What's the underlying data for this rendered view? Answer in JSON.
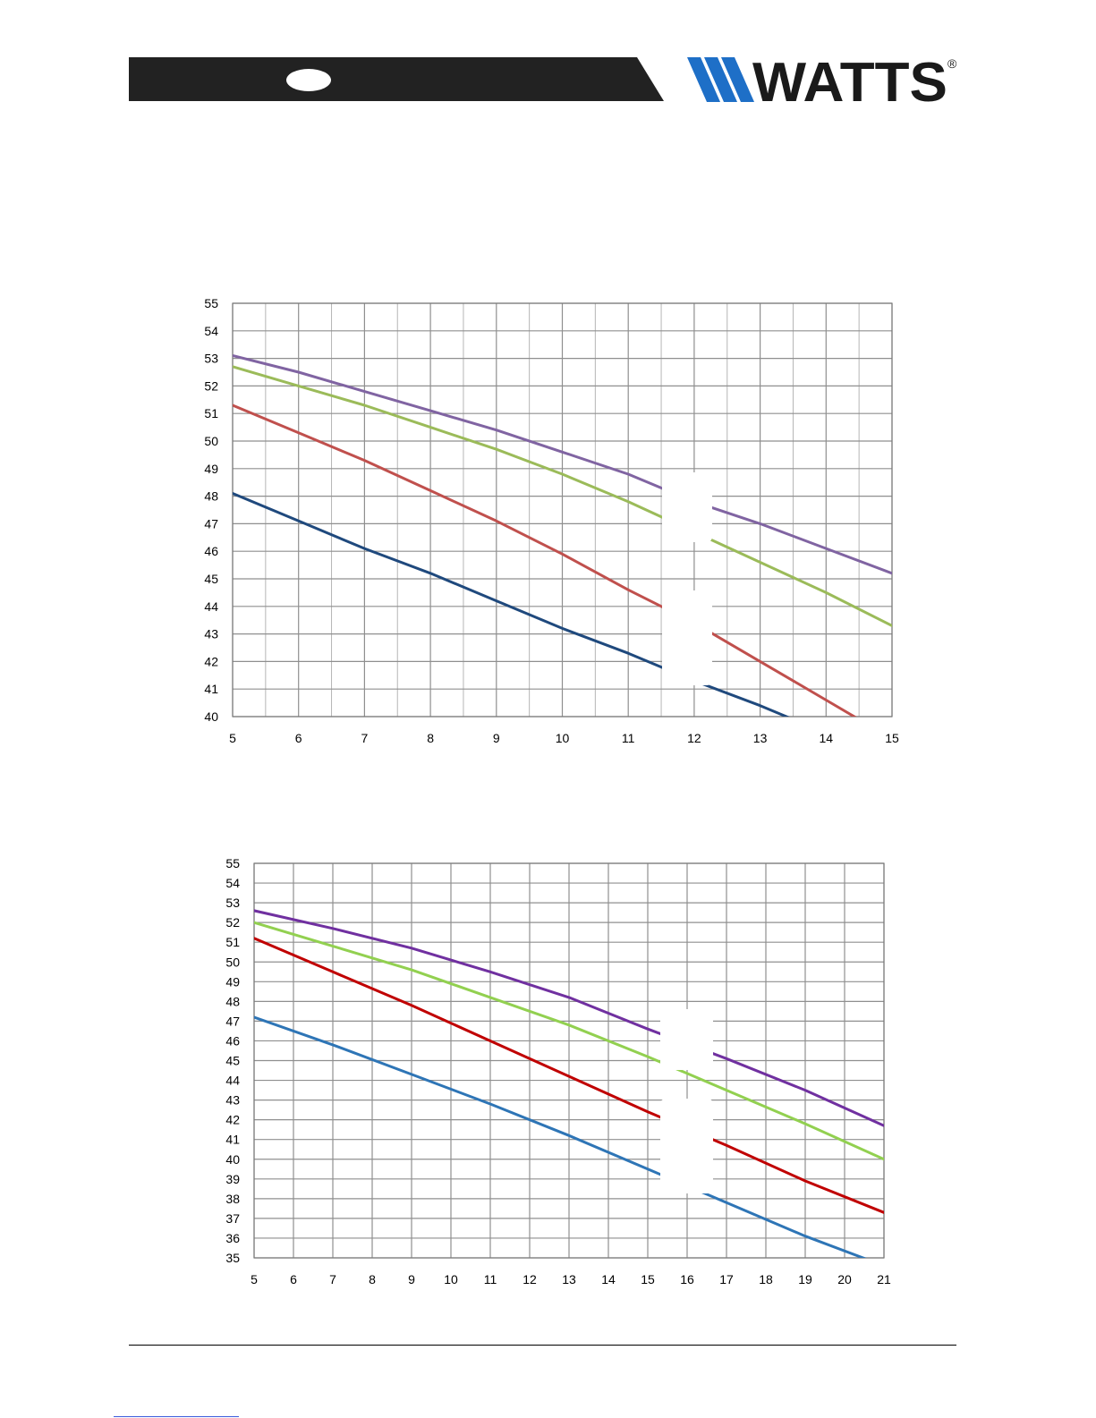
{
  "header": {
    "brand": "WATTS",
    "trademark": "®",
    "band_color": "#222222",
    "logo_blue": "#1e6fc7",
    "logo_text_color": "#1a1a1a"
  },
  "chart_data": [
    {
      "type": "line",
      "title": "",
      "xlabel": "",
      "ylabel": "",
      "xlim": [
        5,
        15
      ],
      "ylim": [
        40,
        55
      ],
      "x_ticks": [
        "5",
        "6",
        "7",
        "8",
        "9",
        "10",
        "11",
        "12",
        "13",
        "14",
        "15"
      ],
      "y_ticks": [
        "55",
        "54",
        "53",
        "52",
        "51",
        "50",
        "49",
        "48",
        "47",
        "46",
        "45",
        "44",
        "43",
        "42",
        "41",
        "40"
      ],
      "grid": true,
      "legend": "none",
      "series": [
        {
          "color": "#8064a2",
          "x": [
            5,
            6,
            7,
            8,
            9,
            10,
            11,
            12,
            13,
            14,
            15
          ],
          "y": [
            53.1,
            52.5,
            51.8,
            51.1,
            50.4,
            49.6,
            48.8,
            47.8,
            47.0,
            46.1,
            45.2
          ]
        },
        {
          "color": "#9bbb59",
          "x": [
            5,
            6,
            7,
            8,
            9,
            10,
            11,
            12,
            13,
            14,
            15
          ],
          "y": [
            52.7,
            52.0,
            51.3,
            50.5,
            49.7,
            48.8,
            47.8,
            46.7,
            45.6,
            44.5,
            43.3
          ]
        },
        {
          "color": "#c0504d",
          "x": [
            5,
            6,
            7,
            8,
            9,
            10,
            11,
            12,
            13,
            14,
            14.5
          ],
          "y": [
            51.3,
            50.3,
            49.3,
            48.2,
            47.1,
            45.9,
            44.6,
            43.4,
            42.0,
            40.6,
            39.9
          ]
        },
        {
          "color": "#1f497d",
          "x": [
            5,
            6,
            7,
            8,
            9,
            10,
            11,
            12,
            13,
            13.5
          ],
          "y": [
            48.1,
            47.1,
            46.1,
            45.2,
            44.2,
            43.2,
            42.3,
            41.3,
            40.4,
            39.9
          ]
        }
      ]
    },
    {
      "type": "line",
      "title": "",
      "xlabel": "",
      "ylabel": "",
      "xlim": [
        5,
        21
      ],
      "ylim": [
        35,
        55
      ],
      "x_ticks": [
        "5",
        "6",
        "7",
        "8",
        "9",
        "10",
        "11",
        "12",
        "13",
        "14",
        "15",
        "16",
        "17",
        "18",
        "19",
        "20",
        "21"
      ],
      "y_ticks": [
        "55",
        "54",
        "53",
        "52",
        "51",
        "50",
        "49",
        "48",
        "47",
        "46",
        "45",
        "44",
        "43",
        "42",
        "41",
        "40",
        "39",
        "38",
        "37",
        "36",
        "35"
      ],
      "grid": true,
      "legend": "none",
      "series": [
        {
          "color": "#7030a0",
          "x": [
            5,
            7,
            9,
            11,
            13,
            15,
            17,
            19,
            21
          ],
          "y": [
            52.6,
            51.7,
            50.7,
            49.5,
            48.2,
            46.6,
            45.1,
            43.5,
            41.7
          ]
        },
        {
          "color": "#92d050",
          "x": [
            5,
            7,
            9,
            11,
            13,
            15,
            17,
            19,
            21
          ],
          "y": [
            52.0,
            50.8,
            49.6,
            48.2,
            46.8,
            45.2,
            43.5,
            41.8,
            40.0
          ]
        },
        {
          "color": "#c00000",
          "x": [
            5,
            7,
            9,
            11,
            13,
            15,
            17,
            19,
            21
          ],
          "y": [
            51.2,
            49.5,
            47.8,
            46.0,
            44.2,
            42.4,
            40.7,
            38.9,
            37.3
          ]
        },
        {
          "color": "#2e75b6",
          "x": [
            5,
            7,
            9,
            11,
            13,
            15,
            17,
            19,
            20.6
          ],
          "y": [
            47.2,
            45.8,
            44.3,
            42.8,
            41.2,
            39.5,
            37.8,
            36.1,
            34.9
          ]
        }
      ]
    }
  ]
}
